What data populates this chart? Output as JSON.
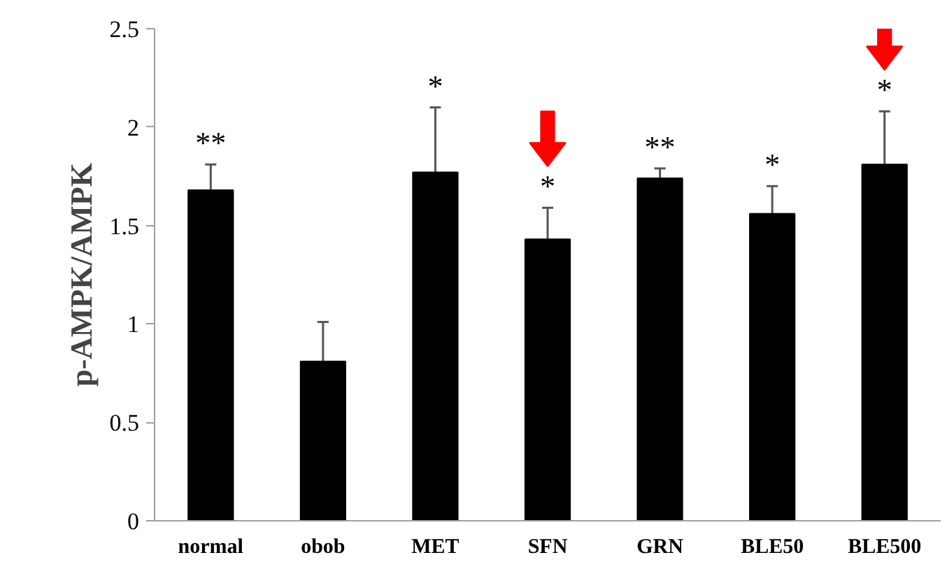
{
  "chart_data": {
    "type": "bar",
    "ylabel": "p-AMPK/AMPK",
    "categories": [
      "normal",
      "obob",
      "MET",
      "SFN",
      "GRN",
      "BLE50",
      "BLE500"
    ],
    "values": [
      1.68,
      0.81,
      1.77,
      1.43,
      1.74,
      1.56,
      1.81
    ],
    "errors": [
      [
        1.68,
        1.81
      ],
      [
        0.81,
        1.01
      ],
      [
        1.77,
        2.1
      ],
      [
        1.43,
        1.59
      ],
      [
        1.74,
        1.79
      ],
      [
        1.56,
        1.7
      ],
      [
        1.81,
        2.08
      ]
    ],
    "color": "#000000",
    "ylim": [
      0,
      2.5
    ],
    "yticks": [
      0,
      {
        "value": 0.5,
        "label": "0.5"
      },
      1,
      1.5,
      2,
      2.5
    ],
    "grid": false,
    "annotations": [
      "**",
      null,
      "*",
      "*",
      "**",
      "*",
      "*"
    ]
  }
}
